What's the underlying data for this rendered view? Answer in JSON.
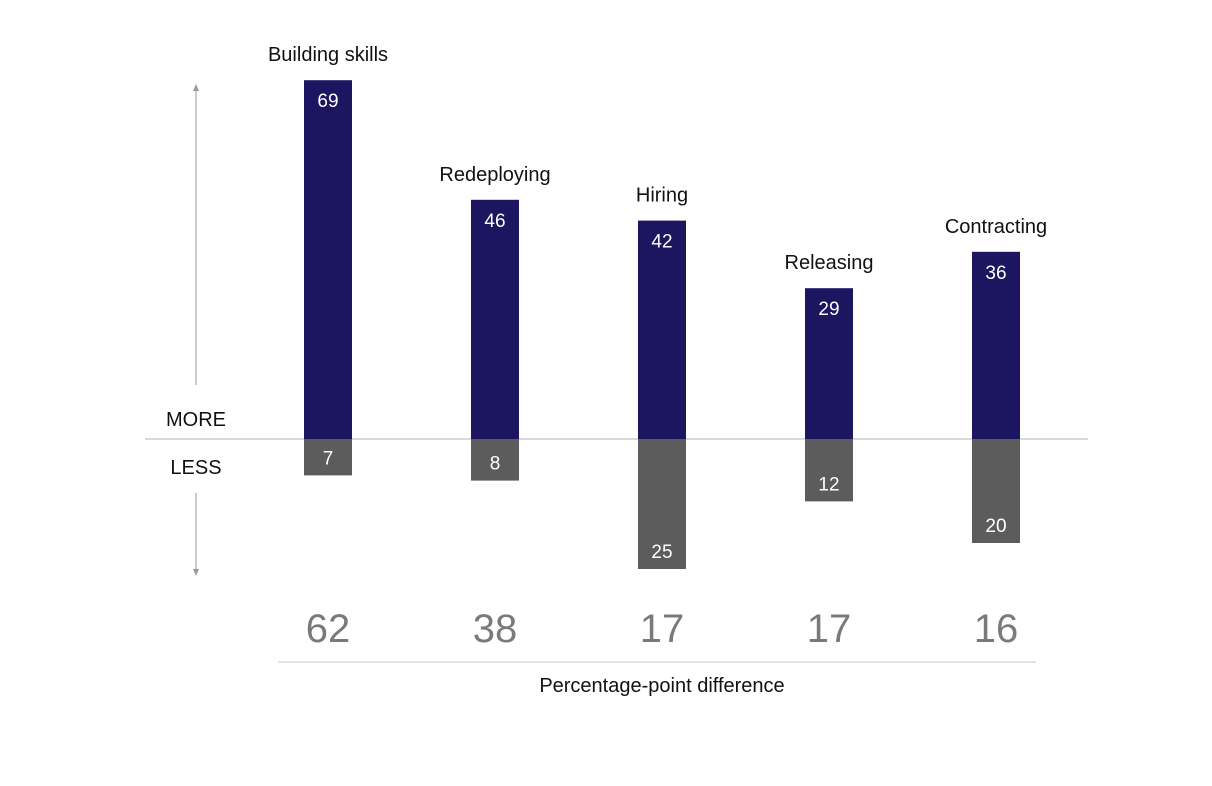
{
  "chart_data": {
    "type": "bar",
    "categories": [
      "Building skills",
      "Redeploying",
      "Hiring",
      "Releasing",
      "Contracting"
    ],
    "series": [
      {
        "values": [
          69,
          46,
          42,
          29,
          36
        ],
        "color": "#1c1660"
      },
      {
        "values": [
          7,
          8,
          25,
          12,
          20
        ],
        "color": "#5c5c5c"
      }
    ],
    "differences": [
      "62",
      "38",
      "17",
      "17",
      "16"
    ],
    "labels": {
      "more": "MORE",
      "less": "LESS"
    },
    "difference_axis_label": "Percentage-point difference",
    "title": "",
    "xlabel": "Percentage-point difference",
    "ylabel": "",
    "legend": "none",
    "grid": false
  }
}
